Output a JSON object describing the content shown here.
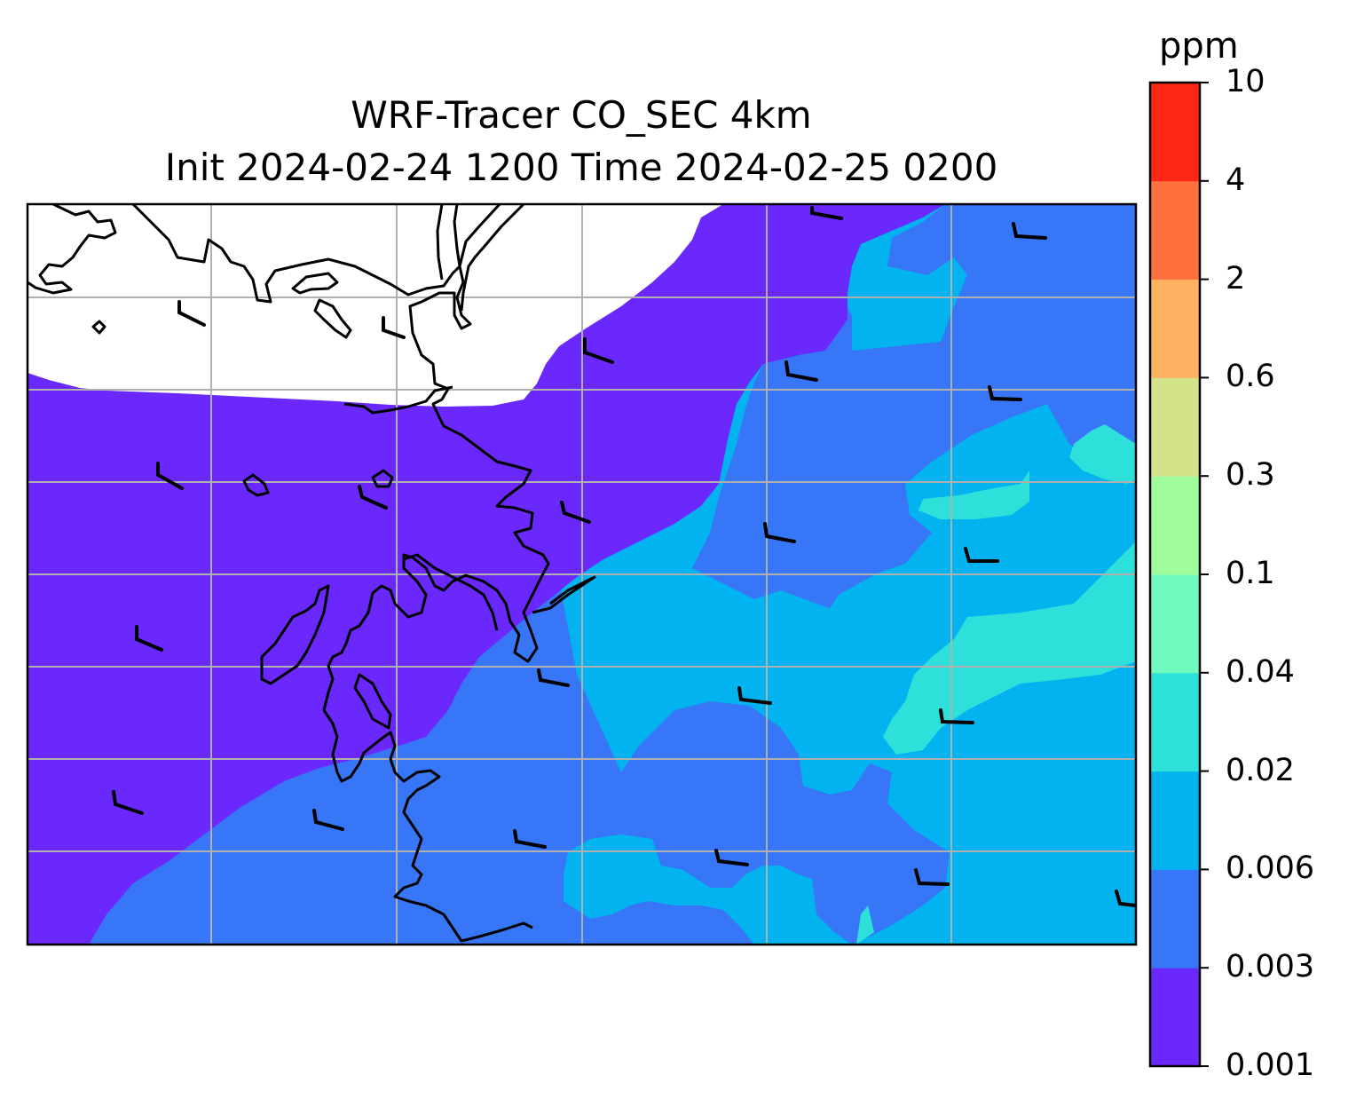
{
  "title_line1": "WRF-Tracer CO_SEC 4km",
  "title_line2": "Init 2024-02-24 1200 Time 2024-02-25 0200",
  "colorbar": {
    "unit": "ppm",
    "levels": [
      "0.001",
      "0.003",
      "0.006",
      "0.02",
      "0.04",
      "0.1",
      "0.3",
      "0.6",
      "2",
      "4",
      "10"
    ],
    "colors": [
      "#6a28fd",
      "#3776f6",
      "#02b3ef",
      "#2de0da",
      "#6ffbbf",
      "#9ffc9b",
      "#d3e389",
      "#fdb262",
      "#ff703f",
      "#ff2817"
    ]
  },
  "map": {
    "fill_colors": {
      "no_data": "#ffffff",
      "level1": "#6a28fd",
      "level2": "#3776f6",
      "level3": "#02b3ef",
      "level4": "#2de0da"
    },
    "gridline_color": "#b0b0b0",
    "coastline_color": "#000000"
  }
}
